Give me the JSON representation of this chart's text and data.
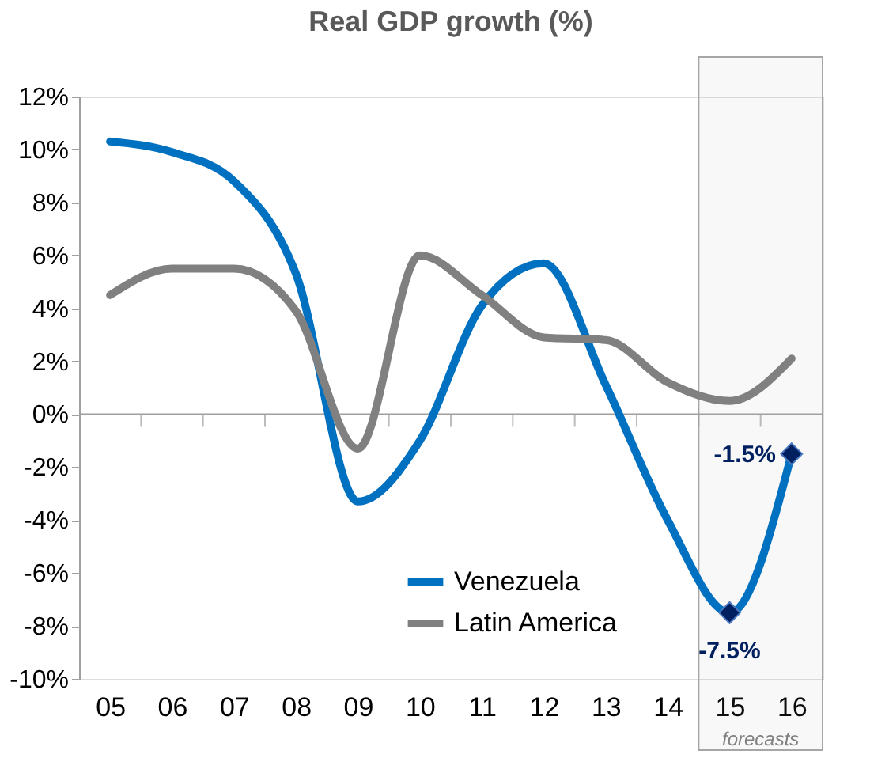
{
  "chart_data": {
    "type": "line",
    "title": "Real GDP growth (%)",
    "categories": [
      "05",
      "06",
      "07",
      "08",
      "09",
      "10",
      "11",
      "12",
      "13",
      "14",
      "15",
      "16"
    ],
    "series": [
      {
        "name": "Venezuela",
        "color": "#0070c0",
        "values": [
          10.3,
          9.9,
          8.8,
          5.3,
          -3.3,
          -1.0,
          4.1,
          5.7,
          1.1,
          -4.0,
          -7.5,
          -1.5
        ],
        "value_labels": [
          null,
          null,
          null,
          null,
          null,
          null,
          null,
          null,
          null,
          null,
          "-7.5%",
          "-1.5%"
        ]
      },
      {
        "name": "Latin America",
        "color": "#808080",
        "values": [
          4.5,
          5.5,
          5.5,
          3.9,
          -1.3,
          6.0,
          4.5,
          2.9,
          2.8,
          1.2,
          0.5,
          2.1
        ]
      }
    ],
    "ylim": [
      -10,
      12
    ],
    "yticks": [
      {
        "value": -10,
        "label": "-10%"
      },
      {
        "value": -8,
        "label": "-8%"
      },
      {
        "value": -6,
        "label": "-6%"
      },
      {
        "value": -4,
        "label": "-4%"
      },
      {
        "value": -2,
        "label": "-2%"
      },
      {
        "value": 0,
        "label": "0%"
      },
      {
        "value": 2,
        "label": "2%"
      },
      {
        "value": 4,
        "label": "4%"
      },
      {
        "value": 6,
        "label": "6%"
      },
      {
        "value": 8,
        "label": "8%"
      },
      {
        "value": 10,
        "label": "10%"
      },
      {
        "value": 12,
        "label": "12%"
      }
    ],
    "ref_lines": [
      {
        "axis": "y",
        "value": 0,
        "color": "#a0a0a0"
      }
    ],
    "bands": [
      {
        "axis": "x",
        "from": "15",
        "to": "16",
        "label": "forecasts",
        "color": "#a6a6a6"
      }
    ],
    "legend": "bottom right",
    "grid": false
  }
}
